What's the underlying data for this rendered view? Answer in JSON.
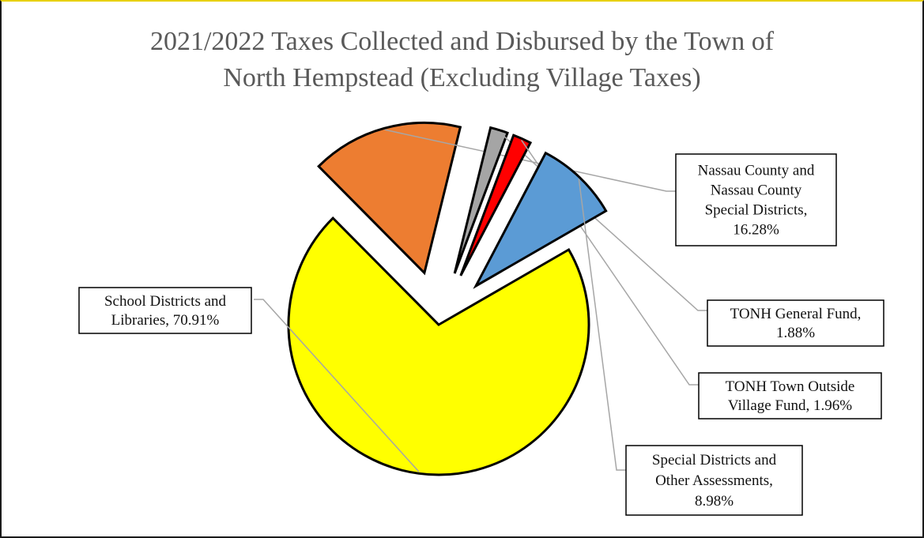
{
  "chart_data": {
    "type": "pie",
    "title_lines": [
      "2021/2022 Taxes Collected and Disbursed by the Town of",
      "North Hempstead (Excluding Village Taxes)"
    ],
    "slices": [
      {
        "name": "School Districts and Libraries",
        "value": 70.91,
        "color": "#ffff00",
        "label_lines": [
          "School Districts and",
          "Libraries, 70.91%"
        ]
      },
      {
        "name": "Nassau County and Nassau County Special Districts",
        "value": 16.28,
        "color": "#ed7d31",
        "label_lines": [
          "Nassau County and",
          "Nassau County",
          "Special Districts,",
          "16.28%"
        ]
      },
      {
        "name": "TONH General Fund",
        "value": 1.88,
        "color": "#a5a5a5",
        "label_lines": [
          "TONH General Fund,",
          "1.88%"
        ]
      },
      {
        "name": "TONH Town Outside Village Fund",
        "value": 1.96,
        "color": "#ff0000",
        "label_lines": [
          "TONH Town Outside",
          "Village  Fund, 1.96%"
        ]
      },
      {
        "name": "Special Districts and Other Assessments",
        "value": 8.98,
        "color": "#5b9bd5",
        "label_lines": [
          "Special Districts and",
          "Other Assessments,",
          "8.98%"
        ]
      }
    ]
  }
}
